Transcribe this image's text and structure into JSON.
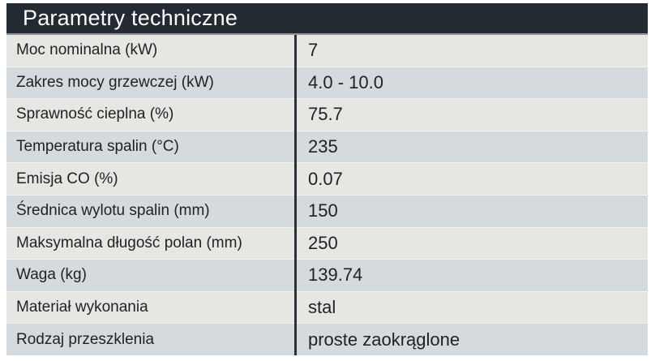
{
  "table": {
    "title": "Parametry techniczne",
    "rows": [
      {
        "label": "Moc nominalna (kW)",
        "value": "7"
      },
      {
        "label": "Zakres mocy grzewczej (kW)",
        "value": "4.0 - 10.0"
      },
      {
        "label": "Sprawność cieplna (%)",
        "value": "75.7"
      },
      {
        "label": "Temperatura spalin (°C)",
        "value": "235"
      },
      {
        "label": "Emisja CO (%)",
        "value": "0.07"
      },
      {
        "label": "Średnica wylotu spalin (mm)",
        "value": "150"
      },
      {
        "label": "Maksymalna długość polan (mm)",
        "value": "250"
      },
      {
        "label": "Waga (kg)",
        "value": "139.74"
      },
      {
        "label": "Materiał wykonania",
        "value": "stal"
      },
      {
        "label": "Rodzaj przeszklenia",
        "value": "proste zaokrąglone"
      }
    ],
    "colors": {
      "header_bg": "#242a32",
      "header_text": "#ffffff",
      "row_odd_bg": "#d5dade",
      "row_even_bg": "#e6e6e2",
      "divider": "#2b3037",
      "text": "#1e2126",
      "header_underline": "#8d9298",
      "page_bg": "#ffffff"
    }
  }
}
